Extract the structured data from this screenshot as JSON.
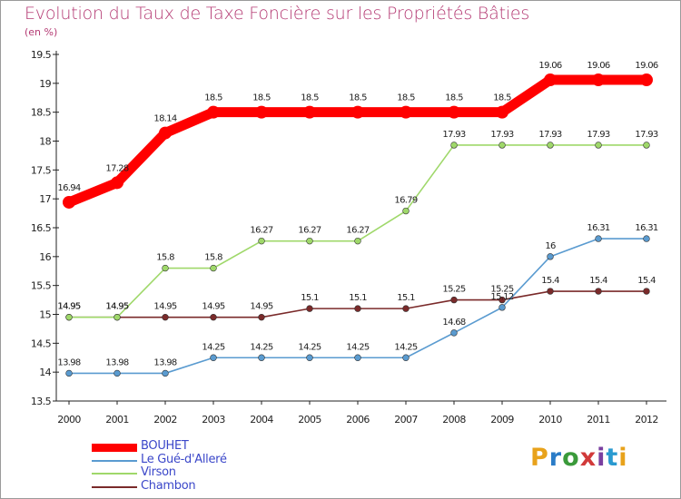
{
  "title": "Evolution du Taux de Taxe Foncière sur les Propriétés Bâties",
  "unit": "(en %)",
  "logo": {
    "text": "Proxiti",
    "colors": [
      "#e8a21b",
      "#2a7cc7",
      "#3a9a3a",
      "#d13a3a",
      "#7a3fa0",
      "#2a9ad0",
      "#e8a21b"
    ]
  },
  "chart_data": {
    "type": "line",
    "x": [
      "2000",
      "2001",
      "2002",
      "2003",
      "2004",
      "2005",
      "2006",
      "2007",
      "2008",
      "2009",
      "2010",
      "2011",
      "2012"
    ],
    "ylim": [
      13.5,
      19.5
    ],
    "yticks": [
      "13.5",
      "14",
      "14.5",
      "15",
      "15.5",
      "16",
      "16.5",
      "17",
      "17.5",
      "18",
      "18.5",
      "19",
      "19.5"
    ],
    "grid": false,
    "legend_position": "bottom-left",
    "series": [
      {
        "name": "BOUHET",
        "color": "#ff0000",
        "values": [
          16.94,
          17.28,
          18.14,
          18.5,
          18.5,
          18.5,
          18.5,
          18.5,
          18.5,
          18.5,
          19.06,
          19.06,
          19.06
        ],
        "labels": [
          "16.94",
          "17.28",
          "18.14",
          "18.5",
          "18.5",
          "18.5",
          "18.5",
          "18.5",
          "18.5",
          "18.5",
          "19.06",
          "19.06",
          "19.06"
        ]
      },
      {
        "name": "Le Gué-d'Alleré",
        "color": "#5a9bd0",
        "values": [
          13.98,
          13.98,
          13.98,
          14.25,
          14.25,
          14.25,
          14.25,
          14.25,
          14.68,
          15.12,
          16,
          16.31,
          16.31
        ],
        "labels": [
          "13.98",
          "13.98",
          "13.98",
          "14.25",
          "14.25",
          "14.25",
          "14.25",
          "14.25",
          "14.68",
          "15.12",
          "16",
          "16.31",
          "16.31"
        ]
      },
      {
        "name": "Virson",
        "color": "#9fd86a",
        "values": [
          14.95,
          14.95,
          15.8,
          15.8,
          16.27,
          16.27,
          16.27,
          16.79,
          17.93,
          17.93,
          17.93,
          17.93,
          17.93
        ],
        "labels": [
          "14.95",
          "14.95",
          "15.8",
          "15.8",
          "16.27",
          "16.27",
          "16.27",
          "16.79",
          "17.93",
          "17.93",
          "17.93",
          "17.93",
          "17.93"
        ]
      },
      {
        "name": "Chambon",
        "color": "#7a2a2a",
        "values": [
          14.95,
          14.95,
          14.95,
          14.95,
          14.95,
          15.1,
          15.1,
          15.1,
          15.25,
          15.25,
          15.4,
          15.4,
          15.4
        ],
        "labels": [
          "14.95",
          "14.95",
          "14.95",
          "14.95",
          "14.95",
          "15.1",
          "15.1",
          "15.1",
          "15.25",
          "15.25",
          "15.4",
          "15.4",
          "15.4"
        ]
      }
    ]
  }
}
